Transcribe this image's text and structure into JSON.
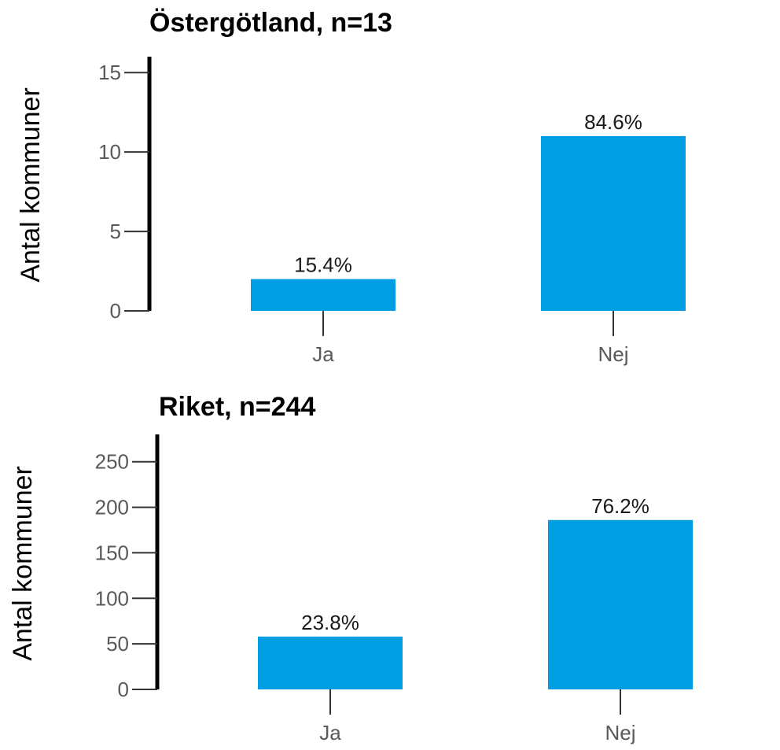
{
  "chart_data": [
    {
      "type": "bar",
      "title": "Östergötland, n=13",
      "ylabel": "Antal kommuner",
      "xlabel": "",
      "categories": [
        "Ja",
        "Nej"
      ],
      "values": [
        2,
        11
      ],
      "data_labels": [
        "15.4%",
        "84.6%"
      ],
      "yticks": [
        0,
        5,
        10,
        15
      ],
      "ylim": [
        0,
        16
      ],
      "bar_color": "#009FE3",
      "grid": false
    },
    {
      "type": "bar",
      "title": "Riket, n=244",
      "ylabel": "Antal kommuner",
      "xlabel": "",
      "categories": [
        "Ja",
        "Nej"
      ],
      "values": [
        58,
        186
      ],
      "data_labels": [
        "23.8%",
        "76.2%"
      ],
      "yticks": [
        0,
        50,
        100,
        150,
        200,
        250
      ],
      "ylim": [
        0,
        280
      ],
      "bar_color": "#009FE3",
      "grid": false
    }
  ]
}
